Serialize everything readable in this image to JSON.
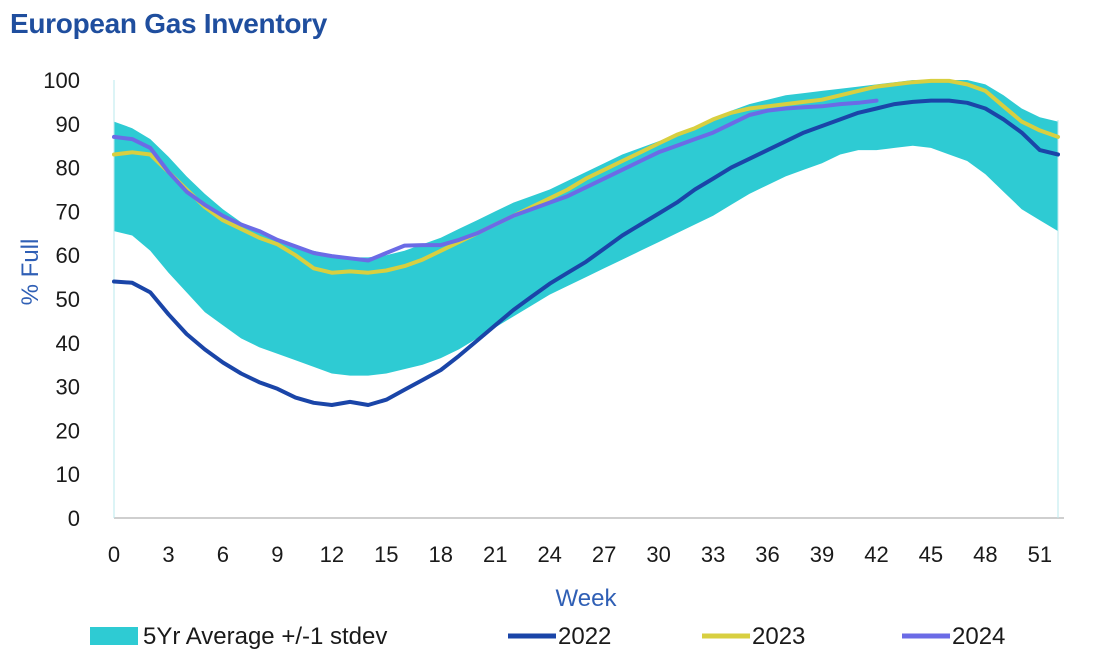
{
  "chart_data": {
    "type": "line",
    "title": "European Gas Inventory",
    "xlabel": "Week",
    "ylabel": "% Full",
    "xlim": [
      0,
      52
    ],
    "ylim": [
      0,
      100
    ],
    "x_ticks": [
      0,
      3,
      6,
      9,
      12,
      15,
      18,
      21,
      24,
      27,
      30,
      33,
      36,
      39,
      42,
      45,
      48,
      51
    ],
    "y_ticks": [
      0,
      10,
      20,
      30,
      40,
      50,
      60,
      70,
      80,
      90,
      100
    ],
    "band": {
      "name": "5Yr Average +/-1 stdev",
      "color": "#2ecbd3",
      "x": [
        0,
        1,
        2,
        3,
        4,
        5,
        6,
        7,
        8,
        9,
        10,
        11,
        12,
        13,
        14,
        15,
        16,
        17,
        18,
        19,
        20,
        21,
        22,
        23,
        24,
        25,
        26,
        27,
        28,
        29,
        30,
        31,
        32,
        33,
        34,
        35,
        36,
        37,
        38,
        39,
        40,
        41,
        42,
        43,
        44,
        45,
        46,
        47,
        48,
        49,
        50,
        51,
        52
      ],
      "upper": [
        90.5,
        89,
        86.5,
        82.5,
        78,
        74,
        70.5,
        67.5,
        65,
        63.5,
        62,
        61,
        60,
        59.5,
        59.5,
        60,
        61,
        62.5,
        64,
        66,
        68,
        70,
        72,
        73.5,
        75,
        77,
        79,
        81,
        83,
        84.5,
        86,
        87.5,
        89,
        91,
        93,
        94.5,
        95.5,
        96.5,
        97,
        97.5,
        98,
        98.5,
        99,
        99.5,
        100,
        100,
        100,
        100,
        99,
        96.5,
        93.5,
        91.5,
        90.5
      ],
      "lower": [
        65.5,
        64.5,
        61,
        56,
        51.5,
        47,
        44,
        41,
        39,
        37.5,
        36,
        34.5,
        33,
        32.5,
        32.5,
        33,
        34,
        35,
        36.5,
        38.5,
        41,
        43.5,
        46,
        48.5,
        51,
        53,
        55,
        57,
        59,
        61,
        63,
        65,
        67,
        69,
        71.5,
        74,
        76,
        78,
        79.5,
        81,
        83,
        84,
        84,
        84.5,
        85,
        84.5,
        83,
        81.5,
        78.5,
        74.5,
        70.5,
        68,
        65.5
      ]
    },
    "series": [
      {
        "name": "2022",
        "color": "#1a45a8",
        "x": [
          0,
          1,
          2,
          3,
          4,
          5,
          6,
          7,
          8,
          9,
          10,
          11,
          12,
          13,
          14,
          15,
          16,
          17,
          18,
          19,
          20,
          21,
          22,
          23,
          24,
          25,
          26,
          27,
          28,
          29,
          30,
          31,
          32,
          33,
          34,
          35,
          36,
          37,
          38,
          39,
          40,
          41,
          42,
          43,
          44,
          45,
          46,
          47,
          48,
          49,
          50,
          51,
          52
        ],
        "values": [
          54,
          53.7,
          51.5,
          46.5,
          42,
          38.5,
          35.5,
          33,
          31,
          29.5,
          27.5,
          26.3,
          25.8,
          26.5,
          25.8,
          27,
          29.3,
          31.5,
          33.8,
          37,
          40.5,
          44,
          47.5,
          50.5,
          53.5,
          56,
          58.5,
          61.5,
          64.5,
          67,
          69.5,
          72,
          75,
          77.5,
          80,
          82,
          84,
          86,
          88,
          89.5,
          91,
          92.5,
          93.5,
          94.5,
          95,
          95.3,
          95.3,
          94.8,
          93.5,
          91,
          88,
          84,
          83
        ]
      },
      {
        "name": "2023",
        "color": "#d8cf40",
        "x": [
          0,
          1,
          2,
          3,
          4,
          5,
          6,
          7,
          8,
          9,
          10,
          11,
          12,
          13,
          14,
          15,
          16,
          17,
          18,
          19,
          20,
          21,
          22,
          23,
          24,
          25,
          26,
          27,
          28,
          29,
          30,
          31,
          32,
          33,
          34,
          35,
          36,
          37,
          38,
          39,
          40,
          41,
          42,
          43,
          44,
          45,
          46,
          47,
          48,
          49,
          50,
          51,
          52
        ],
        "values": [
          83,
          83.5,
          83,
          79,
          75,
          71,
          68,
          66,
          64,
          62.5,
          60,
          57,
          56,
          56.3,
          56,
          56.5,
          57.5,
          59,
          61,
          63,
          65,
          67,
          69,
          71,
          73,
          75,
          77.5,
          79.5,
          81.5,
          83.5,
          85.5,
          87.5,
          89,
          91,
          92.5,
          93.5,
          94,
          94.5,
          95,
          95.5,
          96.5,
          97.5,
          98.5,
          99,
          99.5,
          99.8,
          99.8,
          99,
          97.5,
          94,
          90.5,
          88.5,
          87
        ]
      },
      {
        "name": "2024",
        "color": "#6b6be6",
        "x": [
          0,
          1,
          2,
          3,
          4,
          5,
          6,
          7,
          8,
          9,
          10,
          11,
          12,
          13,
          14,
          15,
          16,
          17,
          18,
          19,
          20,
          21,
          22,
          23,
          24,
          25,
          26,
          27,
          28,
          29,
          30,
          31,
          32,
          33,
          34,
          35,
          36,
          37,
          38,
          39,
          40,
          41,
          42
        ],
        "values": [
          87,
          86.5,
          84.5,
          79,
          74.5,
          71.5,
          69,
          67,
          65.5,
          63.5,
          62,
          60.5,
          59.8,
          59.3,
          58.8,
          60.5,
          62.2,
          62.3,
          62.3,
          63.5,
          65,
          67,
          69,
          70.5,
          72,
          73.5,
          75.5,
          77.5,
          79.5,
          81.5,
          83.5,
          85,
          86.5,
          88,
          90,
          92,
          93,
          93.5,
          93.8,
          94,
          94.5,
          94.8,
          95.3
        ]
      }
    ],
    "legend": {
      "position": "bottom",
      "items": [
        "5Yr Average +/-1 stdev",
        "2022",
        "2023",
        "2024"
      ]
    }
  }
}
